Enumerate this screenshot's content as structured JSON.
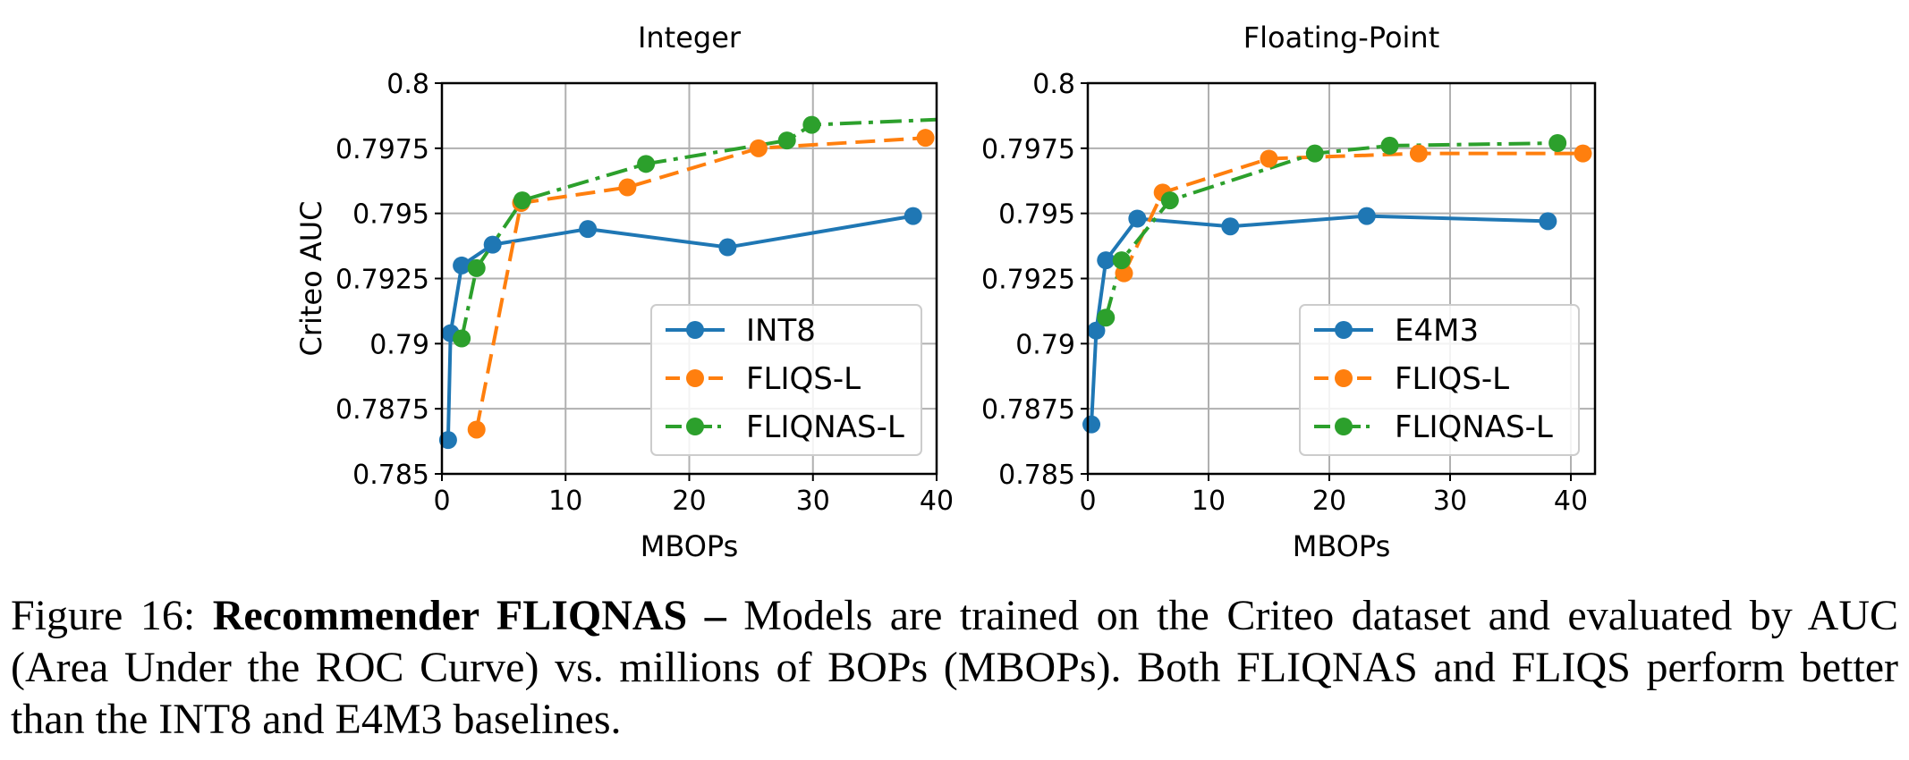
{
  "chart_data": [
    {
      "type": "line",
      "title": "Integer",
      "xlabel": "MBOPs",
      "ylabel": "Criteo AUC",
      "xlim": [
        0,
        40
      ],
      "ylim": [
        0.785,
        0.8
      ],
      "xticks": [
        0,
        10,
        20,
        30,
        40
      ],
      "xtick_labels": [
        "0",
        "10",
        "20",
        "30",
        "40"
      ],
      "yticks": [
        0.785,
        0.7875,
        0.79,
        0.7925,
        0.795,
        0.7975,
        0.8
      ],
      "ytick_labels": [
        "0.785",
        "0.7875",
        "0.79",
        "0.7925",
        "0.795",
        "0.7975",
        "0.8"
      ],
      "grid": true,
      "legend_position": "lower-right",
      "series": [
        {
          "name": "INT8",
          "color": "#1f77b4",
          "dash": "solid",
          "x": [
            0.5,
            0.7,
            1.6,
            4.1,
            11.8,
            23.1,
            38.1
          ],
          "y": [
            0.7863,
            0.7904,
            0.793,
            0.7938,
            0.7944,
            0.7937,
            0.7949
          ]
        },
        {
          "name": "FLIQS-L",
          "color": "#ff7f0e",
          "dash": "dashed",
          "x": [
            2.8,
            6.4,
            15.0,
            25.6,
            39.1
          ],
          "y": [
            0.7867,
            0.7954,
            0.796,
            0.7975,
            0.7979
          ]
        },
        {
          "name": "FLIQNAS-L",
          "color": "#2ca02c",
          "dash": "dashdot",
          "x": [
            1.6,
            2.8,
            6.5,
            16.5,
            27.9,
            29.9,
            40
          ],
          "y": [
            0.7902,
            0.7929,
            0.7955,
            0.7969,
            0.7978,
            0.7984,
            0.7986
          ],
          "markers_count": 6
        }
      ]
    },
    {
      "type": "line",
      "title": "Floating-Point",
      "xlabel": "MBOPs",
      "ylabel": "",
      "xlim": [
        0,
        42
      ],
      "ylim": [
        0.785,
        0.8
      ],
      "xticks": [
        0,
        10,
        20,
        30,
        40
      ],
      "xtick_labels": [
        "0",
        "10",
        "20",
        "30",
        "40"
      ],
      "yticks": [
        0.785,
        0.7875,
        0.79,
        0.7925,
        0.795,
        0.7975,
        0.8
      ],
      "ytick_labels": [
        "0.785",
        "0.7875",
        "0.79",
        "0.7925",
        "0.795",
        "0.7975",
        "0.8"
      ],
      "grid": true,
      "legend_position": "lower-right",
      "series": [
        {
          "name": "E4M3",
          "color": "#1f77b4",
          "dash": "solid",
          "x": [
            0.3,
            0.7,
            1.5,
            4.1,
            11.8,
            23.1,
            38.1
          ],
          "y": [
            0.7869,
            0.7905,
            0.7932,
            0.7948,
            0.7945,
            0.7949,
            0.7947
          ]
        },
        {
          "name": "FLIQS-L",
          "color": "#ff7f0e",
          "dash": "dashed",
          "x": [
            3.0,
            6.2,
            15.0,
            27.4,
            41.0
          ],
          "y": [
            0.7927,
            0.7958,
            0.7971,
            0.7973,
            0.7973
          ]
        },
        {
          "name": "FLIQNAS-L",
          "color": "#2ca02c",
          "dash": "dashdot",
          "x": [
            1.5,
            2.8,
            6.8,
            18.8,
            25.0,
            38.9
          ],
          "y": [
            0.791,
            0.7932,
            0.7955,
            0.7973,
            0.7976,
            0.7977
          ]
        }
      ]
    }
  ],
  "caption": {
    "prefix": "Figure 16: ",
    "bold": "Recommender FLIQNAS –",
    "text": " Models are trained on the Criteo dataset and evaluated by AUC (Area Under the ROC Curve) vs. millions of BOPs (MBOPs). Both FLIQNAS and FLIQS perform better than the INT8 and E4M3 baselines."
  }
}
